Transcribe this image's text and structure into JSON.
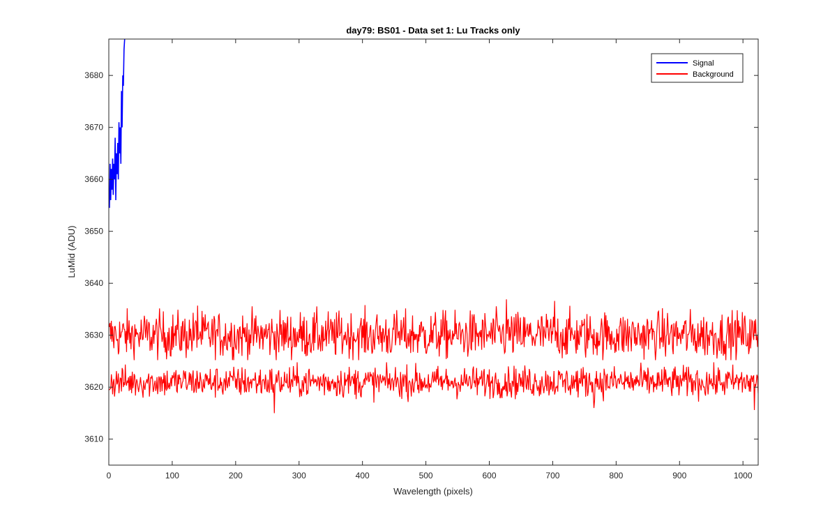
{
  "chart_data": {
    "type": "line",
    "title": "day79: BS01 - Data set 1: Lu Tracks only",
    "xlabel": "Wavelength (pixels)",
    "ylabel": "LuMid (ADU)",
    "xlim": [
      0,
      1024
    ],
    "ylim": [
      3605,
      3687
    ],
    "xticks": [
      0,
      100,
      200,
      300,
      400,
      500,
      600,
      700,
      800,
      900,
      1000
    ],
    "yticks": [
      3610,
      3620,
      3630,
      3640,
      3650,
      3660,
      3670,
      3680
    ],
    "grid": false,
    "legend_position": "top-right",
    "series": [
      {
        "name": "Signal",
        "color": "#0000ff",
        "x": [
          1,
          2,
          3,
          4,
          5,
          6,
          7,
          8,
          9,
          10,
          11,
          12,
          13,
          14,
          15,
          16,
          17,
          18,
          19,
          20,
          21,
          22,
          23,
          24,
          25
        ],
        "y": [
          3654.5,
          3663,
          3656,
          3662,
          3658,
          3664,
          3657,
          3663,
          3660,
          3668,
          3656,
          3665,
          3661,
          3667,
          3660,
          3671,
          3665,
          3670,
          3663,
          3677,
          3670,
          3680,
          3678,
          3685,
          3687
        ]
      },
      {
        "name": "Background",
        "color": "#ff0000",
        "segments": [
          {
            "noise": "random",
            "x_range": [
              0,
              1024
            ],
            "mean": 3630,
            "amplitude": 3,
            "min": 3624,
            "max": 3637,
            "notable": [
              {
                "x": 140,
                "y": 3635.7
              },
              {
                "x": 627,
                "y": 3636.9
              },
              {
                "x": 703,
                "y": 3636.6
              }
            ]
          },
          {
            "noise": "random",
            "x_range": [
              0,
              1024
            ],
            "mean": 3621,
            "amplitude": 2,
            "min": 3615,
            "max": 3626,
            "notable": [
              {
                "x": 261,
                "y": 3615
              },
              {
                "x": 765,
                "y": 3616
              },
              {
                "x": 1018,
                "y": 3615.6
              }
            ]
          }
        ]
      }
    ]
  }
}
